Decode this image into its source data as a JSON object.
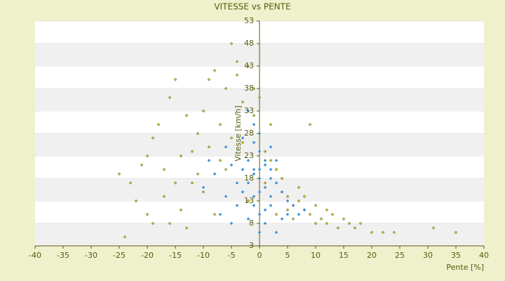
{
  "chart_data": {
    "type": "scatter",
    "title": "VITESSE vs PENTE",
    "x_label": "Pente [%]",
    "y_label": "Vitesse [km/h]",
    "xlim": [
      -40,
      40
    ],
    "xticks": [
      -40,
      -35,
      -30,
      -25,
      -20,
      -15,
      -10,
      -5,
      0,
      5,
      10,
      15,
      20,
      25,
      30,
      35,
      40
    ],
    "ylim": [
      3,
      53
    ],
    "yticks": [
      3,
      8,
      13,
      18,
      23,
      28,
      33,
      38,
      43,
      48,
      53
    ],
    "series": [
      {
        "color": "#c9c21e",
        "x": [
          -24,
          -25,
          -23,
          -21,
          -20,
          -19,
          -18,
          -20,
          -17,
          -16,
          -15,
          -14,
          -13,
          -12,
          -11,
          -10,
          -9,
          -8,
          -7,
          -6,
          -5,
          -4,
          -3,
          -2,
          -1,
          0,
          1,
          2,
          3,
          4,
          5,
          6,
          7,
          8,
          9,
          10,
          11,
          12,
          13,
          14,
          15,
          16,
          17,
          18,
          20,
          22,
          24,
          31,
          35,
          9,
          -13,
          -16,
          -19,
          -10,
          -6,
          -3,
          -1,
          2,
          4,
          6,
          7,
          3,
          -2,
          -8,
          -11,
          -14,
          -17,
          -22,
          -9,
          -4,
          0,
          -7,
          -5,
          1,
          5,
          8,
          10,
          12,
          -12,
          -15
        ],
        "values": [
          5,
          19,
          17,
          21,
          23,
          27,
          30,
          10,
          20,
          36,
          40,
          23,
          32,
          17,
          28,
          33,
          25,
          42,
          30,
          38,
          48,
          44,
          35,
          43,
          32,
          28,
          24,
          22,
          20,
          18,
          14,
          12,
          13,
          11,
          10,
          12,
          9,
          8,
          10,
          7,
          9,
          8,
          7,
          8,
          6,
          6,
          6,
          7,
          6,
          30,
          7,
          8,
          8,
          15,
          20,
          26,
          38,
          30,
          15,
          9,
          16,
          10,
          13,
          10,
          19,
          11,
          14,
          13,
          40,
          41,
          36,
          22,
          27,
          17,
          11,
          14,
          8,
          11,
          24,
          17
        ]
      },
      {
        "color": "#3a8fd8",
        "x": [
          0,
          1,
          -1,
          2,
          -2,
          0,
          1,
          -1,
          3,
          -3,
          0,
          1,
          -1,
          2,
          -2,
          4,
          -4,
          5,
          -5,
          0,
          -1,
          2,
          -3,
          -6,
          -8,
          -10,
          -7,
          -5,
          -4,
          3,
          0,
          6,
          7,
          8,
          -2,
          -1,
          1,
          0,
          2,
          -3,
          3,
          -6,
          -9,
          1,
          4,
          -2,
          0,
          -1,
          2,
          5
        ],
        "values": [
          20,
          21,
          19,
          18,
          22,
          24,
          16,
          14,
          17,
          20,
          10,
          8,
          12,
          12,
          9,
          15,
          17,
          13,
          21,
          28,
          30,
          25,
          27,
          25,
          19,
          16,
          10,
          8,
          12,
          6,
          6,
          12,
          10,
          11,
          33,
          26,
          22,
          18,
          20,
          15,
          22,
          14,
          22,
          11,
          9,
          17,
          15,
          20,
          14,
          10
        ]
      }
    ]
  }
}
